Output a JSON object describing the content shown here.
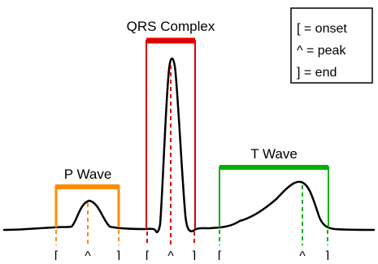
{
  "waves": [
    {
      "id": "p-wave",
      "label": "P Wave",
      "color": "#ff8c00"
    },
    {
      "id": "qrs-complex",
      "label": "QRS Complex",
      "color": "#e00000"
    },
    {
      "id": "t-wave",
      "label": "T Wave",
      "color": "#00b000"
    }
  ],
  "legend": {
    "items": [
      "[ = onset",
      "^ = peak",
      "] = end"
    ]
  },
  "markers": {
    "onset": "[",
    "peak": "^",
    "end": "]"
  },
  "colors": {
    "trace": "#000000",
    "p_wave": "#ff8c00",
    "qrs": "#e00000",
    "t_wave": "#00b000"
  }
}
